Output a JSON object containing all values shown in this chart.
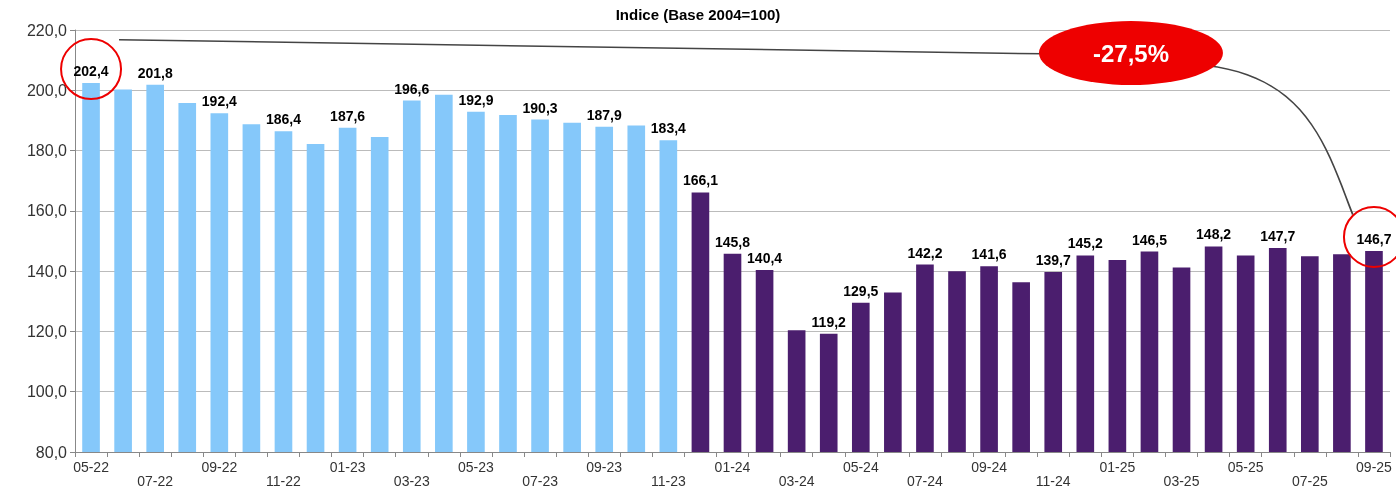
{
  "chart_data": {
    "type": "bar",
    "title": "Indice (Base 2004=100)",
    "categories": [
      "05-22",
      null,
      "07-22",
      null,
      "09-22",
      null,
      "11-22",
      null,
      "01-23",
      null,
      "03-23",
      null,
      "05-23",
      null,
      "07-23",
      null,
      "09-23",
      null,
      "11-23",
      null,
      "01-24",
      null,
      "03-24",
      null,
      "05-24",
      null,
      "07-24",
      null,
      "09-24",
      null,
      "11-24",
      null,
      "01-25",
      null,
      "03-25",
      null,
      "05-25",
      null,
      "07-25",
      null,
      "09-25"
    ],
    "values": [
      202.4,
      200.3,
      201.8,
      195.8,
      192.4,
      188.7,
      186.4,
      182.2,
      187.6,
      184.5,
      196.6,
      198.5,
      192.9,
      191.8,
      190.3,
      189.2,
      187.9,
      188.3,
      183.4,
      166.1,
      145.8,
      140.4,
      120.4,
      119.2,
      129.5,
      132.9,
      142.2,
      140.0,
      141.6,
      136.3,
      139.7,
      145.2,
      143.7,
      146.5,
      141.2,
      148.2,
      145.2,
      147.7,
      144.9,
      145.6,
      146.7
    ],
    "value_labels": [
      "202,4",
      null,
      "201,8",
      null,
      "192,4",
      null,
      "186,4",
      null,
      "187,6",
      null,
      "196,6",
      null,
      "192,9",
      null,
      "190,3",
      null,
      "187,9",
      null,
      "183,4",
      "166,1",
      "145,8",
      "140,4",
      null,
      "119,2",
      "129,5",
      null,
      "142,2",
      null,
      "141,6",
      null,
      "139,7",
      "145,2",
      null,
      "146,5",
      null,
      "148,2",
      null,
      "147,7",
      null,
      null,
      "146,7"
    ],
    "colors": [
      "#85c8fa",
      "#85c8fa",
      "#85c8fa",
      "#85c8fa",
      "#85c8fa",
      "#85c8fa",
      "#85c8fa",
      "#85c8fa",
      "#85c8fa",
      "#85c8fa",
      "#85c8fa",
      "#85c8fa",
      "#85c8fa",
      "#85c8fa",
      "#85c8fa",
      "#85c8fa",
      "#85c8fa",
      "#85c8fa",
      "#85c8fa",
      "#4b1e6e",
      "#4b1e6e",
      "#4b1e6e",
      "#4b1e6e",
      "#4b1e6e",
      "#4b1e6e",
      "#4b1e6e",
      "#4b1e6e",
      "#4b1e6e",
      "#4b1e6e",
      "#4b1e6e",
      "#4b1e6e",
      "#4b1e6e",
      "#4b1e6e",
      "#4b1e6e",
      "#4b1e6e",
      "#4b1e6e",
      "#4b1e6e",
      "#4b1e6e",
      "#4b1e6e",
      "#4b1e6e",
      "#4b1e6e"
    ],
    "ylim": [
      80,
      220
    ],
    "yticks": [
      {
        "value": 80,
        "label": "80,0"
      },
      {
        "value": 100,
        "label": "100,0"
      },
      {
        "value": 120,
        "label": "120,0"
      },
      {
        "value": 140,
        "label": "140,0"
      },
      {
        "value": 160,
        "label": "160,0"
      },
      {
        "value": 180,
        "label": "180,0"
      },
      {
        "value": 200,
        "label": "200,0"
      },
      {
        "value": 220,
        "label": "220,0"
      }
    ],
    "grid": "y",
    "annotations": [
      "-27,5%"
    ]
  }
}
